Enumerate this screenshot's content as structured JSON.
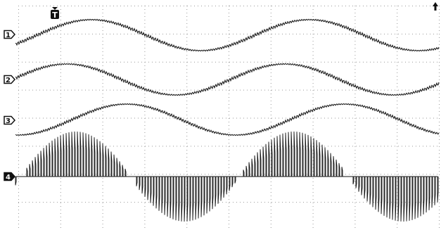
{
  "trigger": {
    "label": "T"
  },
  "channels": [
    {
      "label": "1"
    },
    {
      "label": "2"
    },
    {
      "label": "3"
    },
    {
      "label": "4"
    }
  ],
  "colors": {
    "trace": "#111111",
    "grid": "#9a9a9a",
    "background": "#ffffff"
  },
  "icons": {
    "trigger_marker": "trigger-down-arrow-icon",
    "position_marker": "arrow-up-icon"
  }
}
